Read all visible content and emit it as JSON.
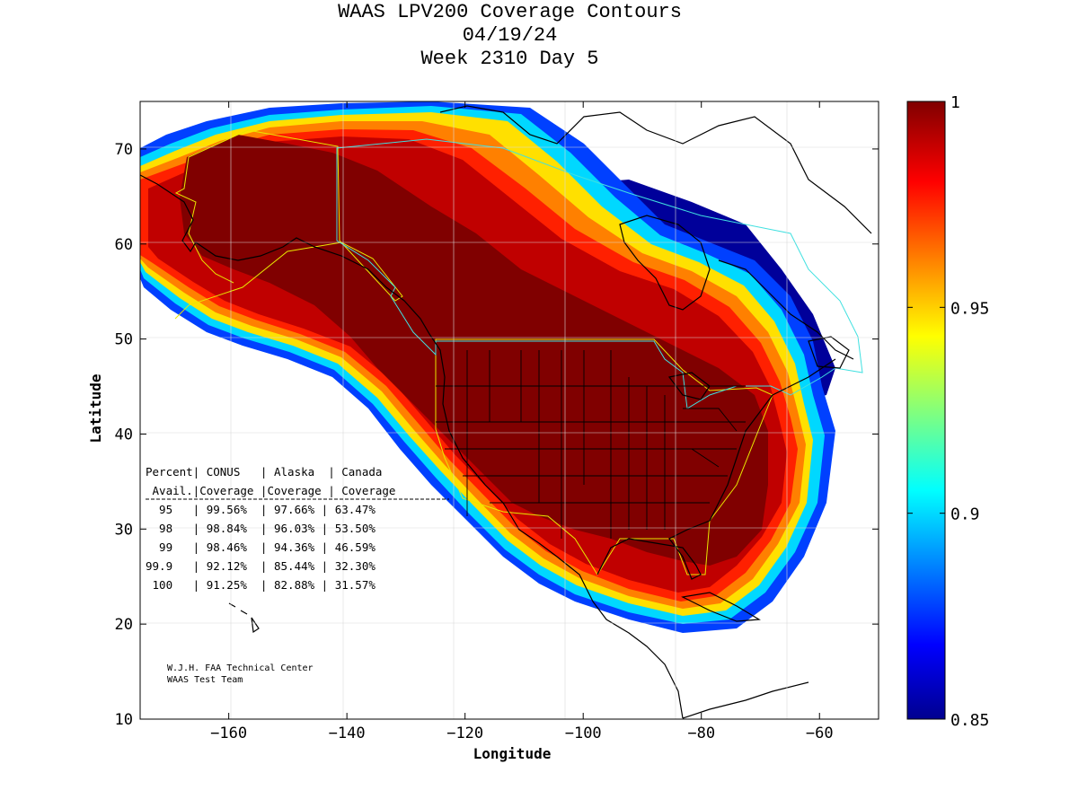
{
  "title": {
    "line1": "WAAS LPV200 Coverage Contours",
    "line2": "04/19/24",
    "line3": "Week 2310 Day 5"
  },
  "axes": {
    "xlabel": "Longitude",
    "ylabel": "Latitude",
    "xlim": [
      -175,
      -50
    ],
    "ylim": [
      10,
      75
    ],
    "xticks": [
      -160,
      -140,
      -120,
      -100,
      -80,
      -60
    ],
    "yticks": [
      10,
      20,
      30,
      40,
      50,
      60,
      70
    ]
  },
  "colorbar": {
    "range": [
      0.85,
      1
    ],
    "tick_labels": [
      "1",
      "0.95",
      "0.9",
      "0.85"
    ],
    "colormap": "jet"
  },
  "table": {
    "header1": "Percent| CONUS   | Alaska  | Canada",
    "header2": " Avail.|Coverage |Coverage | Coverage",
    "rows": [
      "  95   | 99.56%  | 97.66% | 63.47%",
      "  98   | 98.84%  | 96.03% | 53.50%",
      "  99   | 98.46%  | 94.36% | 46.59%",
      "99.9   | 92.12%  | 85.44% | 32.30%",
      " 100   | 91.25%  | 82.88% | 31.57%"
    ]
  },
  "credit": {
    "line1": "W.J.H. FAA Technical Center",
    "line2": "WAAS Test Team"
  },
  "colors": {
    "dark_red": "#800000",
    "red": "#c00000",
    "bright_red": "#ff2000",
    "orange": "#ff8000",
    "yellow": "#ffe000",
    "cyan": "#00d8ff",
    "blue": "#0040ff",
    "navy": "#00009a",
    "boundary_conus": "#e8e800",
    "boundary_canada": "#40e0e0"
  }
}
